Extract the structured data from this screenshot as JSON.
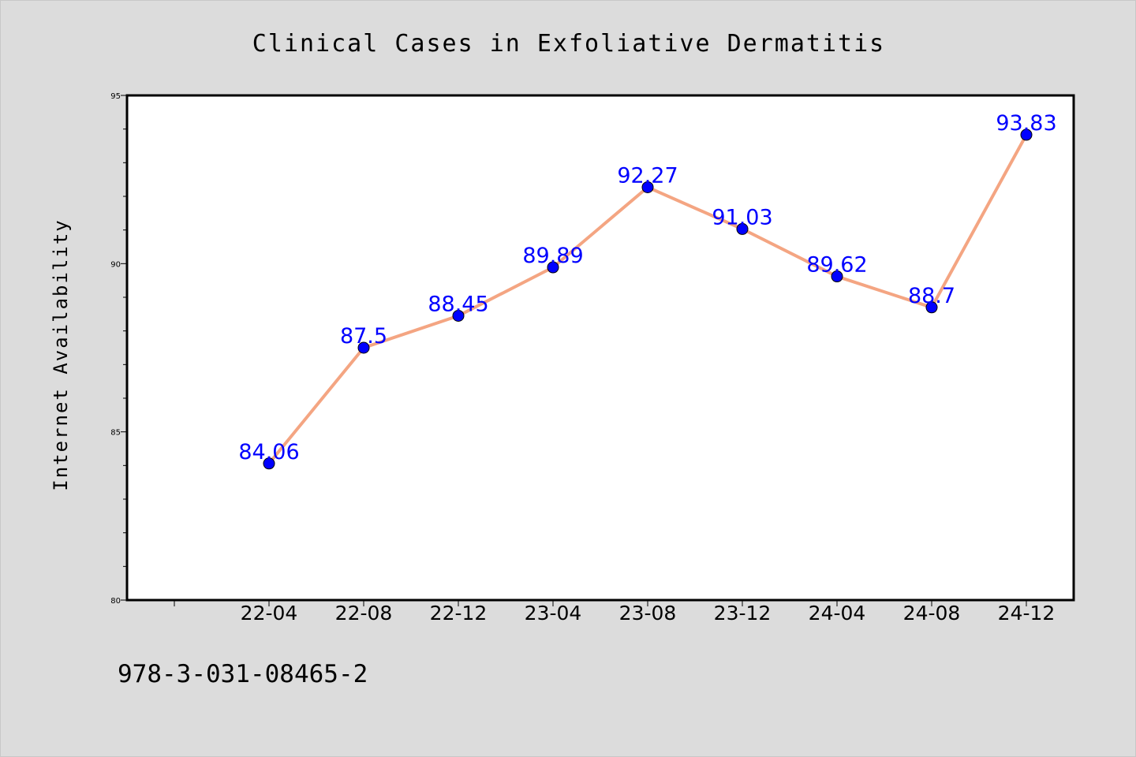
{
  "chart_data": {
    "type": "line",
    "title": "Clinical Cases in Exfoliative Dermatitis",
    "xlabel": "",
    "ylabel": "Internet Availability",
    "categories": [
      "22-04",
      "22-08",
      "22-12",
      "23-04",
      "23-08",
      "23-12",
      "24-04",
      "24-08",
      "24-12"
    ],
    "series": [
      {
        "values": [
          84.06,
          87.5,
          88.45,
          89.89,
          92.27,
          91.03,
          89.62,
          88.7,
          93.83
        ],
        "labels": [
          "84.06",
          "87.5",
          "88.45",
          "89.89",
          "92.27",
          "91.03",
          "89.62",
          "88.7",
          "93.83"
        ],
        "line_color": "#f4a582",
        "marker_color": "#0000ff",
        "label_color": "#0000ff"
      }
    ],
    "ylim": [
      80,
      95
    ],
    "yticks": [
      80,
      85,
      90,
      95
    ],
    "grid": false,
    "legend": "none"
  },
  "footer": {
    "text": "978-3-031-08465-2"
  },
  "colors": {
    "background": "#dcdcdc",
    "plot_background": "#ffffff"
  }
}
